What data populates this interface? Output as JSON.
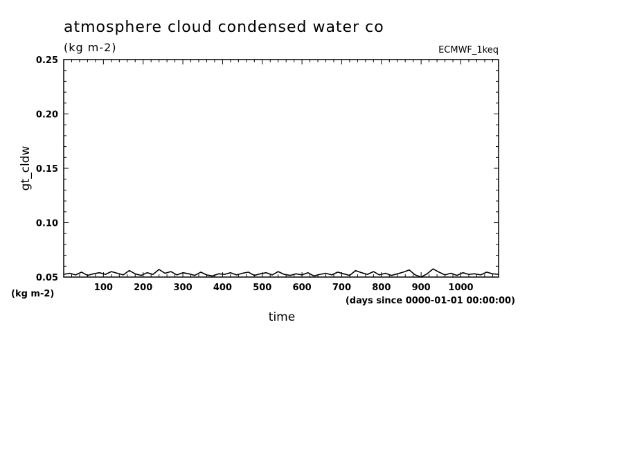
{
  "chart_data": {
    "type": "line",
    "title": "atmosphere cloud condensed water co",
    "subtitle": "(kg m-2)",
    "dataset_label": "ECMWF_1keq",
    "xlabel": "time",
    "x_units": "(days since 0000-01-01 00:00:00)",
    "ylabel": "gt_cldw",
    "y_units": "(kg m-2)",
    "xlim": [
      0,
      1095
    ],
    "ylim": [
      0.05,
      0.25
    ],
    "x_ticks": [
      100,
      200,
      300,
      400,
      500,
      600,
      700,
      800,
      900,
      1000
    ],
    "x_tick_labels": [
      "100",
      "200",
      "300",
      "400",
      "500",
      "600",
      "700",
      "800",
      "900",
      "1000"
    ],
    "y_ticks": [
      0.05,
      0.1,
      0.15,
      0.2,
      0.25
    ],
    "y_tick_labels": [
      "0.05",
      "0.10",
      "0.15",
      "0.20",
      "0.25"
    ],
    "grid": false,
    "series": [
      {
        "x": [
          0,
          15,
          30,
          45,
          60,
          75,
          90,
          105,
          120,
          135,
          150,
          165,
          180,
          195,
          210,
          225,
          240,
          255,
          270,
          285,
          300,
          315,
          330,
          345,
          360,
          375,
          390,
          405,
          420,
          435,
          450,
          465,
          480,
          495,
          510,
          525,
          540,
          555,
          570,
          585,
          600,
          615,
          630,
          645,
          660,
          675,
          690,
          705,
          720,
          735,
          750,
          765,
          780,
          795,
          810,
          825,
          840,
          855,
          870,
          885,
          900,
          915,
          930,
          945,
          960,
          975,
          990,
          1005,
          1020,
          1035,
          1050,
          1065,
          1080,
          1095
        ],
        "y": [
          0.0525,
          0.0535,
          0.052,
          0.0545,
          0.0515,
          0.053,
          0.054,
          0.0525,
          0.055,
          0.0535,
          0.052,
          0.056,
          0.053,
          0.0515,
          0.054,
          0.0525,
          0.057,
          0.0535,
          0.055,
          0.052,
          0.054,
          0.053,
          0.0515,
          0.0545,
          0.052,
          0.051,
          0.053,
          0.0525,
          0.054,
          0.052,
          0.0535,
          0.0545,
          0.0515,
          0.053,
          0.054,
          0.052,
          0.055,
          0.0525,
          0.0515,
          0.053,
          0.052,
          0.054,
          0.051,
          0.0525,
          0.0535,
          0.052,
          0.0545,
          0.053,
          0.0515,
          0.056,
          0.054,
          0.0525,
          0.055,
          0.052,
          0.0535,
          0.0515,
          0.053,
          0.0545,
          0.0565,
          0.052,
          0.05,
          0.053,
          0.0575,
          0.0545,
          0.052,
          0.0535,
          0.0515,
          0.054,
          0.0525,
          0.053,
          0.052,
          0.0545,
          0.053,
          0.0525
        ]
      }
    ]
  }
}
